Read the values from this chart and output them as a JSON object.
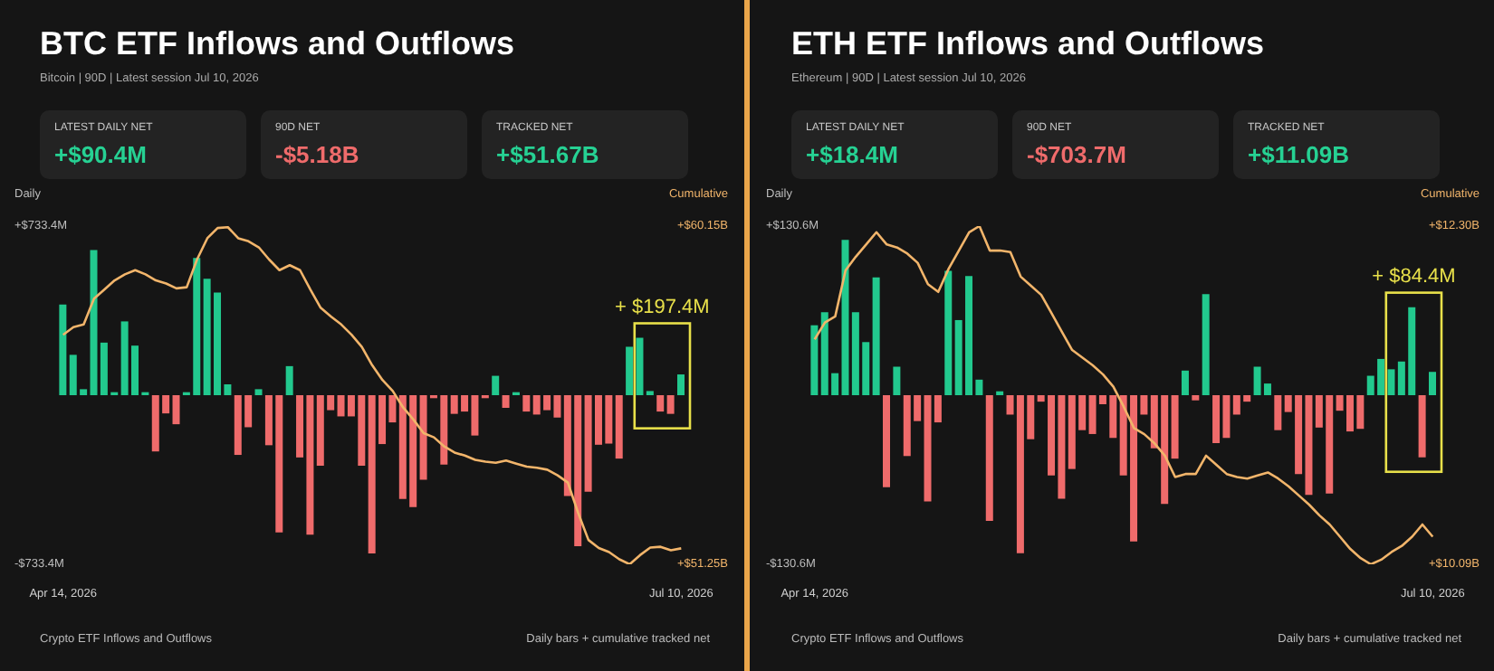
{
  "chart_data": [
    {
      "type": "bar",
      "title": "BTC ETF Inflows and Outflows",
      "subtitle": "Bitcoin | 90D | Latest session Jul 10, 2026",
      "ylabel": "Daily",
      "y2label": "Cumulative",
      "categories": [
        "Apr 14, 2026",
        null,
        null,
        null,
        null,
        null,
        null,
        null,
        null,
        null,
        null,
        null,
        null,
        null,
        null,
        null,
        null,
        null,
        null,
        null,
        null,
        null,
        null,
        null,
        null,
        null,
        null,
        null,
        null,
        null,
        null,
        null,
        null,
        null,
        null,
        null,
        null,
        null,
        null,
        null,
        null,
        null,
        null,
        null,
        null,
        null,
        null,
        null,
        null,
        null,
        null,
        null,
        null,
        null,
        null,
        null,
        null,
        null,
        null,
        null,
        "Jul 10, 2026"
      ],
      "series": [
        {
          "type": "bar",
          "colors": [
            "#22c98e",
            "#22c98e",
            "#22c98e",
            "#22c98e",
            "#22c98e",
            "#22c98e",
            "#22c98e",
            "#22c98e",
            "#22c98e",
            "#ef6b6b",
            "#ef6b6b",
            "#ef6b6b",
            "#22c98e",
            "#22c98e",
            "#22c98e",
            "#22c98e",
            "#22c98e",
            "#ef6b6b",
            "#ef6b6b",
            "#22c98e",
            "#ef6b6b",
            "#ef6b6b",
            "#22c98e",
            "#ef6b6b",
            "#ef6b6b",
            "#ef6b6b",
            "#ef6b6b",
            "#ef6b6b",
            "#ef6b6b",
            "#ef6b6b",
            "#ef6b6b",
            "#ef6b6b",
            "#ef6b6b",
            "#ef6b6b",
            "#ef6b6b",
            "#ef6b6b",
            "#ef6b6b",
            "#ef6b6b",
            "#ef6b6b",
            "#ef6b6b",
            "#ef6b6b",
            "#ef6b6b",
            "#22c98e",
            "#ef6b6b",
            "#22c98e",
            "#ef6b6b",
            "#ef6b6b",
            "#ef6b6b",
            "#ef6b6b",
            "#ef6b6b",
            "#ef6b6b",
            "#ef6b6b",
            "#ef6b6b",
            "#ef6b6b",
            "#ef6b6b",
            "#22c98e",
            "#22c98e",
            "#22c98e",
            "#ef6b6b",
            "#ef6b6b",
            "#22c98e"
          ],
          "values": [
            393,
            175,
            26,
            629,
            228,
            13,
            320,
            215,
            13,
            -244,
            -79,
            -126,
            13,
            595,
            505,
            445,
            47,
            -259,
            -139,
            26,
            -217,
            -595,
            126,
            -270,
            -605,
            -306,
            -65,
            -92,
            -92,
            -306,
            -686,
            -212,
            -118,
            -450,
            -485,
            -367,
            -13,
            -301,
            -81,
            -71,
            -175,
            -13,
            84,
            -55,
            13,
            -71,
            -84,
            -65,
            -97,
            -437,
            -655,
            -419,
            -215,
            -210,
            -275,
            210,
            249,
            18,
            -71,
            -81,
            90
          ]
        },
        {
          "type": "line",
          "axis": "y2",
          "color": "#f2b56b",
          "values": [
            57.29,
            57.49,
            57.56,
            58.24,
            58.48,
            58.72,
            58.88,
            58.99,
            58.88,
            58.72,
            58.64,
            58.51,
            58.54,
            59.27,
            59.83,
            60.1,
            60.12,
            59.83,
            59.75,
            59.59,
            59.27,
            58.99,
            59.12,
            58.99,
            58.48,
            58.0,
            57.77,
            57.56,
            57.29,
            56.97,
            56.49,
            56.1,
            55.81,
            55.38,
            55.06,
            54.7,
            54.59,
            54.35,
            54.19,
            54.11,
            54.0,
            53.95,
            53.92,
            53.98,
            53.9,
            53.82,
            53.79,
            53.74,
            53.59,
            53.4,
            52.6,
            51.89,
            51.68,
            51.57,
            51.38,
            51.25,
            51.49,
            51.69,
            51.71,
            51.62,
            51.67
          ]
        }
      ],
      "ylim": [
        -733.4,
        733.4
      ],
      "yticks": [
        {
          "value": -733.4,
          "label": "-$733.4M"
        },
        {
          "value": 733.4,
          "label": "+$733.4M"
        }
      ],
      "y2lim": [
        51.25,
        60.15
      ],
      "y2ticks": [
        {
          "value": 51.25,
          "label": "+$51.25B"
        },
        {
          "value": 60.15,
          "label": "+$60.15B"
        }
      ],
      "annotations": [
        "LATEST DAILY NET",
        "+$90.4M",
        "90D NET",
        "-$5.18B",
        "TRACKED NET",
        "+$51.67B",
        "+ $197.4M",
        "Crypto ETF Inflows and Outflows",
        "Daily bars + cumulative tracked net"
      ]
    },
    {
      "type": "bar",
      "title": "ETH ETF Inflows and Outflows",
      "subtitle": "Ethereum | 90D | Latest session Jul 10, 2026",
      "ylabel": "Daily",
      "y2label": "Cumulative",
      "categories": [
        "Apr 14, 2026",
        null,
        null,
        null,
        null,
        null,
        null,
        null,
        null,
        null,
        null,
        null,
        null,
        null,
        null,
        null,
        null,
        null,
        null,
        null,
        null,
        null,
        null,
        null,
        null,
        null,
        null,
        null,
        null,
        null,
        null,
        null,
        null,
        null,
        null,
        null,
        null,
        null,
        null,
        null,
        null,
        null,
        null,
        null,
        null,
        null,
        null,
        null,
        null,
        null,
        null,
        null,
        null,
        null,
        null,
        null,
        null,
        null,
        null,
        null,
        "Jul 10, 2026"
      ],
      "series": [
        {
          "type": "bar",
          "colors": [
            "#22c98e",
            "#22c98e",
            "#22c98e",
            "#22c98e",
            "#22c98e",
            "#22c98e",
            "#22c98e",
            "#ef6b6b",
            "#22c98e",
            "#ef6b6b",
            "#ef6b6b",
            "#ef6b6b",
            "#ef6b6b",
            "#22c98e",
            "#22c98e",
            "#22c98e",
            "#22c98e",
            "#ef6b6b",
            "#22c98e",
            "#ef6b6b",
            "#ef6b6b",
            "#ef6b6b",
            "#ef6b6b",
            "#ef6b6b",
            "#ef6b6b",
            "#ef6b6b",
            "#ef6b6b",
            "#ef6b6b",
            "#ef6b6b",
            "#ef6b6b",
            "#ef6b6b",
            "#ef6b6b",
            "#ef6b6b",
            "#ef6b6b",
            "#ef6b6b",
            "#ef6b6b",
            "#22c98e",
            "#ef6b6b",
            "#22c98e",
            "#ef6b6b",
            "#ef6b6b",
            "#ef6b6b",
            "#ef6b6b",
            "#22c98e",
            "#22c98e",
            "#ef6b6b",
            "#ef6b6b",
            "#ef6b6b",
            "#ef6b6b",
            "#ef6b6b",
            "#ef6b6b",
            "#ef6b6b",
            "#ef6b6b",
            "#ef6b6b",
            "#22c98e",
            "#22c98e",
            "#22c98e",
            "#22c98e",
            "#22c98e",
            "#ef6b6b",
            "#22c98e"
          ],
          "values": [
            54,
            64,
            17,
            120,
            64,
            41,
            91,
            -71,
            22,
            -47,
            -20,
            -82,
            -21,
            96,
            58,
            92,
            12,
            -97,
            3,
            -15,
            -122,
            -34,
            -5,
            -62,
            -80,
            -57,
            -27,
            -30,
            -7,
            -33,
            -62,
            -113,
            -15,
            -41,
            -84,
            -49,
            19,
            -4,
            78,
            -37,
            -33,
            -15,
            -5,
            22,
            9,
            -27,
            -13,
            -61,
            -77,
            -25,
            -76,
            -12,
            -28,
            -26,
            15,
            28,
            20,
            26,
            68,
            -48,
            18
          ]
        },
        {
          "type": "line",
          "axis": "y2",
          "color": "#f2b56b",
          "values": [
            11.56,
            11.67,
            11.71,
            12.01,
            12.1,
            12.18,
            12.26,
            12.18,
            12.16,
            12.12,
            12.06,
            11.92,
            11.87,
            12.02,
            12.14,
            12.26,
            12.3,
            12.14,
            12.14,
            12.13,
            11.97,
            11.91,
            11.85,
            11.73,
            11.61,
            11.49,
            11.44,
            11.39,
            11.33,
            11.25,
            11.12,
            10.98,
            10.94,
            10.88,
            10.8,
            10.66,
            10.68,
            10.68,
            10.8,
            10.74,
            10.68,
            10.66,
            10.65,
            10.67,
            10.69,
            10.65,
            10.6,
            10.54,
            10.48,
            10.41,
            10.35,
            10.27,
            10.19,
            10.13,
            10.09,
            10.12,
            10.17,
            10.21,
            10.27,
            10.35,
            10.27
          ]
        }
      ],
      "ylim": [
        -130.6,
        130.6
      ],
      "yticks": [
        {
          "value": -130.6,
          "label": "-$130.6M"
        },
        {
          "value": 130.6,
          "label": "+$130.6M"
        }
      ],
      "y2lim": [
        10.09,
        12.3
      ],
      "y2ticks": [
        {
          "value": 10.09,
          "label": "+$10.09B"
        },
        {
          "value": 12.3,
          "label": "+$12.30B"
        }
      ],
      "annotations": [
        "LATEST DAILY NET",
        "+$18.4M",
        "90D NET",
        "-$703.7M",
        "TRACKED NET",
        "+$11.09B",
        "+ $84.4M",
        "Crypto ETF Inflows and Outflows",
        "Daily bars + cumulative tracked net"
      ]
    }
  ]
}
